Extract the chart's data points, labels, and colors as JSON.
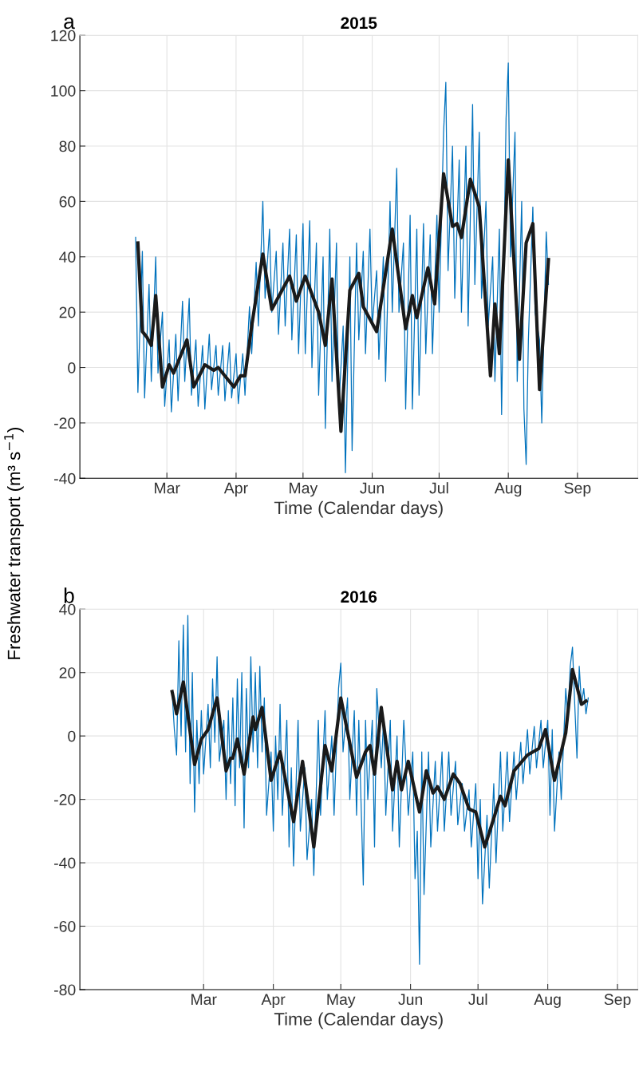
{
  "chart_data": [
    {
      "type": "line",
      "title": "2015",
      "xlabel": "Time (Calendar days)",
      "ylabel": "Freshwater transport (m³ s$^{−1}$)",
      "annotations": [
        "a"
      ],
      "grid": true,
      "xlim": [
        "2015-01-21",
        "2015-09-28"
      ],
      "ylim": [
        -40,
        120
      ],
      "yticks": [
        -40,
        -20,
        0,
        20,
        40,
        60,
        80,
        100,
        120
      ],
      "xticks": [
        {
          "value": "2015-03-01",
          "label": "Mar"
        },
        {
          "value": "2015-04-01",
          "label": "Apr"
        },
        {
          "value": "2015-05-01",
          "label": "May"
        },
        {
          "value": "2015-06-01",
          "label": "Jun"
        },
        {
          "value": "2015-07-01",
          "label": "Jul"
        },
        {
          "value": "2015-08-01",
          "label": "Aug"
        },
        {
          "value": "2015-09-01",
          "label": "Sep"
        }
      ],
      "series": [
        {
          "color": "#0072bd",
          "x": [
            "2015-02-15",
            "2015-02-16",
            "2015-02-18",
            "2015-02-19",
            "2015-02-21",
            "2015-02-22",
            "2015-02-24",
            "2015-02-25",
            "2015-02-27",
            "2015-02-28",
            "2015-03-02",
            "2015-03-03",
            "2015-03-05",
            "2015-03-06",
            "2015-03-08",
            "2015-03-09",
            "2015-03-11",
            "2015-03-12",
            "2015-03-14",
            "2015-03-15",
            "2015-03-17",
            "2015-03-18",
            "2015-03-20",
            "2015-03-21",
            "2015-03-23",
            "2015-03-24",
            "2015-03-26",
            "2015-03-27",
            "2015-03-29",
            "2015-03-30",
            "2015-04-01",
            "2015-04-02",
            "2015-04-04",
            "2015-04-05",
            "2015-04-07",
            "2015-04-08",
            "2015-04-10",
            "2015-04-11",
            "2015-04-13",
            "2015-04-14",
            "2015-04-16",
            "2015-04-17",
            "2015-04-19",
            "2015-04-20",
            "2015-04-22",
            "2015-04-23",
            "2015-04-25",
            "2015-04-26",
            "2015-04-28",
            "2015-04-29",
            "2015-05-01",
            "2015-05-02",
            "2015-05-04",
            "2015-05-05",
            "2015-05-07",
            "2015-05-08",
            "2015-05-10",
            "2015-05-11",
            "2015-05-13",
            "2015-05-14",
            "2015-05-16",
            "2015-05-17",
            "2015-05-19",
            "2015-05-20",
            "2015-05-22",
            "2015-05-23",
            "2015-05-25",
            "2015-05-26",
            "2015-05-28",
            "2015-05-29",
            "2015-05-31",
            "2015-06-01",
            "2015-06-03",
            "2015-06-04",
            "2015-06-06",
            "2015-06-07",
            "2015-06-09",
            "2015-06-10",
            "2015-06-12",
            "2015-06-13",
            "2015-06-15",
            "2015-06-16",
            "2015-06-18",
            "2015-06-19",
            "2015-06-21",
            "2015-06-22",
            "2015-06-24",
            "2015-06-25",
            "2015-06-27",
            "2015-06-28",
            "2015-06-30",
            "2015-07-01",
            "2015-07-03",
            "2015-07-04",
            "2015-07-05",
            "2015-07-07",
            "2015-07-08",
            "2015-07-10",
            "2015-07-11",
            "2015-07-13",
            "2015-07-14",
            "2015-07-16",
            "2015-07-17",
            "2015-07-19",
            "2015-07-20",
            "2015-07-22",
            "2015-07-23",
            "2015-07-25",
            "2015-07-26",
            "2015-07-28",
            "2015-07-29",
            "2015-07-31",
            "2015-08-01",
            "2015-08-02",
            "2015-08-04",
            "2015-08-05",
            "2015-08-07",
            "2015-08-08",
            "2015-08-09",
            "2015-08-10",
            "2015-08-12",
            "2015-08-13",
            "2015-08-15",
            "2015-08-16",
            "2015-08-18",
            "2015-08-19"
          ],
          "values": [
            47,
            -9,
            42,
            -11,
            30,
            -5,
            40,
            -2,
            20,
            -14,
            10,
            -16,
            12,
            -12,
            24,
            -5,
            25,
            -10,
            10,
            -14,
            8,
            -15,
            12,
            -8,
            8,
            -10,
            8,
            -12,
            9,
            -11,
            5,
            -13,
            5,
            -10,
            22,
            5,
            38,
            15,
            60,
            25,
            50,
            20,
            42,
            12,
            45,
            15,
            50,
            10,
            48,
            5,
            52,
            5,
            53,
            0,
            45,
            -10,
            40,
            -22,
            50,
            -5,
            45,
            -15,
            15,
            -38,
            40,
            -30,
            45,
            10,
            42,
            5,
            50,
            15,
            35,
            3,
            40,
            -5,
            60,
            20,
            72,
            20,
            45,
            -15,
            55,
            -15,
            50,
            -10,
            52,
            5,
            48,
            5,
            55,
            20,
            85,
            103,
            35,
            80,
            25,
            75,
            20,
            80,
            15,
            95,
            30,
            85,
            25,
            60,
            15,
            40,
            -5,
            50,
            -17,
            90,
            110,
            40,
            85,
            -5,
            60,
            -15,
            -35,
            10,
            58,
            20,
            10,
            -20,
            49,
            30
          ]
        },
        {
          "color": "#1a1a1a",
          "x": [
            "2015-02-16",
            "2015-02-18",
            "2015-02-20",
            "2015-02-22",
            "2015-02-24",
            "2015-02-27",
            "2015-03-02",
            "2015-03-04",
            "2015-03-10",
            "2015-03-13",
            "2015-03-18",
            "2015-03-22",
            "2015-03-24",
            "2015-03-27",
            "2015-03-31",
            "2015-04-03",
            "2015-04-05",
            "2015-04-08",
            "2015-04-13",
            "2015-04-17",
            "2015-04-25",
            "2015-04-28",
            "2015-05-02",
            "2015-05-08",
            "2015-05-11",
            "2015-05-14",
            "2015-05-18",
            "2015-05-22",
            "2015-05-26",
            "2015-05-28",
            "2015-06-03",
            "2015-06-10",
            "2015-06-16",
            "2015-06-19",
            "2015-06-21",
            "2015-06-26",
            "2015-06-29",
            "2015-07-03",
            "2015-07-07",
            "2015-07-09",
            "2015-07-11",
            "2015-07-15",
            "2015-07-19",
            "2015-07-24",
            "2015-07-26",
            "2015-07-28",
            "2015-08-01",
            "2015-08-06",
            "2015-08-09",
            "2015-08-12",
            "2015-08-15",
            "2015-08-19"
          ],
          "values": [
            45,
            13,
            11,
            8,
            26,
            -7,
            1,
            -2,
            10,
            -7,
            1,
            -1,
            0,
            -3,
            -7,
            -3,
            -3,
            15,
            41,
            21,
            33,
            24,
            33,
            20,
            8,
            32,
            -23,
            28,
            34,
            22,
            13,
            50,
            14,
            26,
            18,
            36,
            23,
            70,
            51,
            52,
            47,
            68,
            58,
            -3,
            23,
            5,
            75,
            3,
            45,
            52,
            -8,
            39
          ]
        }
      ]
    },
    {
      "type": "line",
      "title": "2016",
      "xlabel": "Time (Calendar days)",
      "annotations": [
        "b"
      ],
      "grid": true,
      "xlim": [
        "2016-01-06",
        "2016-09-10"
      ],
      "ylim": [
        -80,
        40
      ],
      "yticks": [
        -80,
        -60,
        -40,
        -20,
        0,
        20,
        40
      ],
      "xticks": [
        {
          "value": "2016-03-01",
          "label": "Mar"
        },
        {
          "value": "2016-04-01",
          "label": "Apr"
        },
        {
          "value": "2016-05-01",
          "label": "May"
        },
        {
          "value": "2016-06-01",
          "label": "Jun"
        },
        {
          "value": "2016-07-01",
          "label": "Jul"
        },
        {
          "value": "2016-08-01",
          "label": "Aug"
        },
        {
          "value": "2016-09-01",
          "label": "Sep"
        }
      ],
      "series": [
        {
          "color": "#0072bd",
          "x": [
            "2016-02-16",
            "2016-02-17",
            "2016-02-18",
            "2016-02-19",
            "2016-02-20",
            "2016-02-21",
            "2016-02-22",
            "2016-02-23",
            "2016-02-24",
            "2016-02-25",
            "2016-02-26",
            "2016-02-27",
            "2016-02-28",
            "2016-02-29",
            "2016-03-01",
            "2016-03-03",
            "2016-03-04",
            "2016-03-05",
            "2016-03-06",
            "2016-03-07",
            "2016-03-08",
            "2016-03-10",
            "2016-03-11",
            "2016-03-12",
            "2016-03-13",
            "2016-03-14",
            "2016-03-15",
            "2016-03-16",
            "2016-03-17",
            "2016-03-18",
            "2016-03-19",
            "2016-03-20",
            "2016-03-21",
            "2016-03-22",
            "2016-03-23",
            "2016-03-24",
            "2016-03-25",
            "2016-03-26",
            "2016-03-27",
            "2016-03-28",
            "2016-03-29",
            "2016-03-31",
            "2016-04-01",
            "2016-04-02",
            "2016-04-03",
            "2016-04-04",
            "2016-04-05",
            "2016-04-07",
            "2016-04-08",
            "2016-04-09",
            "2016-04-10",
            "2016-04-12",
            "2016-04-13",
            "2016-04-15",
            "2016-04-16",
            "2016-04-18",
            "2016-04-19",
            "2016-04-21",
            "2016-04-22",
            "2016-04-24",
            "2016-04-25",
            "2016-04-27",
            "2016-04-28",
            "2016-04-30",
            "2016-05-01",
            "2016-05-02",
            "2016-05-04",
            "2016-05-05",
            "2016-05-07",
            "2016-05-08",
            "2016-05-09",
            "2016-05-11",
            "2016-05-12",
            "2016-05-13",
            "2016-05-15",
            "2016-05-16",
            "2016-05-17",
            "2016-05-19",
            "2016-05-20",
            "2016-05-21",
            "2016-05-23",
            "2016-05-24",
            "2016-05-26",
            "2016-05-27",
            "2016-05-29",
            "2016-05-31",
            "2016-06-02",
            "2016-06-03",
            "2016-06-04",
            "2016-06-05",
            "2016-06-06",
            "2016-06-07",
            "2016-06-09",
            "2016-06-10",
            "2016-06-12",
            "2016-06-13",
            "2016-06-15",
            "2016-06-16",
            "2016-06-18",
            "2016-06-19",
            "2016-06-21",
            "2016-06-22",
            "2016-06-24",
            "2016-06-25",
            "2016-06-27",
            "2016-06-28",
            "2016-06-30",
            "2016-07-01",
            "2016-07-02",
            "2016-07-03",
            "2016-07-05",
            "2016-07-06",
            "2016-07-08",
            "2016-07-09",
            "2016-07-11",
            "2016-07-12",
            "2016-07-14",
            "2016-07-15",
            "2016-07-17",
            "2016-07-18",
            "2016-07-20",
            "2016-07-21",
            "2016-07-23",
            "2016-07-24",
            "2016-07-26",
            "2016-07-27",
            "2016-07-29",
            "2016-07-30",
            "2016-08-01",
            "2016-08-02",
            "2016-08-03",
            "2016-08-04",
            "2016-08-06",
            "2016-08-07",
            "2016-08-09",
            "2016-08-10",
            "2016-08-11",
            "2016-08-12",
            "2016-08-13",
            "2016-08-14",
            "2016-08-15",
            "2016-08-16",
            "2016-08-17",
            "2016-08-18",
            "2016-08-19"
          ],
          "values": [
            14,
            2,
            -6,
            30,
            0,
            35,
            -5,
            38,
            -15,
            20,
            -24,
            5,
            -15,
            8,
            -12,
            10,
            -10,
            18,
            -2,
            25,
            -8,
            5,
            -20,
            8,
            -15,
            12,
            -22,
            18,
            -10,
            20,
            -29,
            15,
            -10,
            25,
            -5,
            20,
            -10,
            22,
            -5,
            12,
            -25,
            -5,
            -30,
            0,
            -20,
            10,
            -25,
            5,
            -35,
            -10,
            -41,
            5,
            -30,
            -10,
            -39,
            -20,
            -44,
            5,
            -25,
            8,
            -20,
            0,
            -25,
            15,
            23,
            -5,
            12,
            -20,
            8,
            -25,
            5,
            -47,
            5,
            -20,
            5,
            -35,
            15,
            -10,
            5,
            -25,
            5,
            -30,
            0,
            -35,
            5,
            -25,
            -5,
            -45,
            -30,
            -72,
            -5,
            -50,
            -5,
            -35,
            -8,
            -30,
            -5,
            -30,
            -5,
            -25,
            -8,
            -28,
            -15,
            -30,
            -17,
            -35,
            -15,
            -45,
            -20,
            -53,
            -25,
            -48,
            -15,
            -40,
            -5,
            -30,
            -5,
            -27,
            -5,
            -20,
            -2,
            -15,
            2,
            -12,
            3,
            -10,
            5,
            -10,
            5,
            -25,
            2,
            -30,
            -5,
            -20,
            15,
            5,
            22,
            28,
            10,
            -7,
            22,
            10,
            15,
            7,
            12
          ]
        },
        {
          "color": "#1a1a1a",
          "x": [
            "2016-02-16",
            "2016-02-18",
            "2016-02-21",
            "2016-02-26",
            "2016-02-29",
            "2016-03-03",
            "2016-03-07",
            "2016-03-11",
            "2016-03-13",
            "2016-03-14",
            "2016-03-16",
            "2016-03-19",
            "2016-03-23",
            "2016-03-24",
            "2016-03-27",
            "2016-03-31",
            "2016-04-04",
            "2016-04-10",
            "2016-04-14",
            "2016-04-19",
            "2016-04-24",
            "2016-04-27",
            "2016-05-01",
            "2016-05-08",
            "2016-05-12",
            "2016-05-14",
            "2016-05-16",
            "2016-05-19",
            "2016-05-24",
            "2016-05-26",
            "2016-05-28",
            "2016-05-31",
            "2016-06-05",
            "2016-06-08",
            "2016-06-11",
            "2016-06-13",
            "2016-06-16",
            "2016-06-20",
            "2016-06-23",
            "2016-06-27",
            "2016-06-30",
            "2016-07-04",
            "2016-07-08",
            "2016-07-11",
            "2016-07-13",
            "2016-07-17",
            "2016-07-23",
            "2016-07-28",
            "2016-07-31",
            "2016-08-04",
            "2016-08-09",
            "2016-08-12",
            "2016-08-16",
            "2016-08-18"
          ],
          "values": [
            14,
            7,
            17,
            -9,
            -1,
            2,
            12,
            -11,
            -7,
            -7,
            -1,
            -12,
            6,
            2,
            9,
            -14,
            -5,
            -27,
            -8,
            -35,
            -3,
            -11,
            12,
            -13,
            -5,
            -3,
            -12,
            9,
            -17,
            -8,
            -17,
            -8,
            -24,
            -11,
            -18,
            -16,
            -20,
            -12,
            -15,
            -23,
            -24,
            -35,
            -26,
            -19,
            -22,
            -11,
            -6,
            -4,
            2,
            -14,
            1,
            21,
            10,
            11
          ]
        }
      ]
    }
  ]
}
